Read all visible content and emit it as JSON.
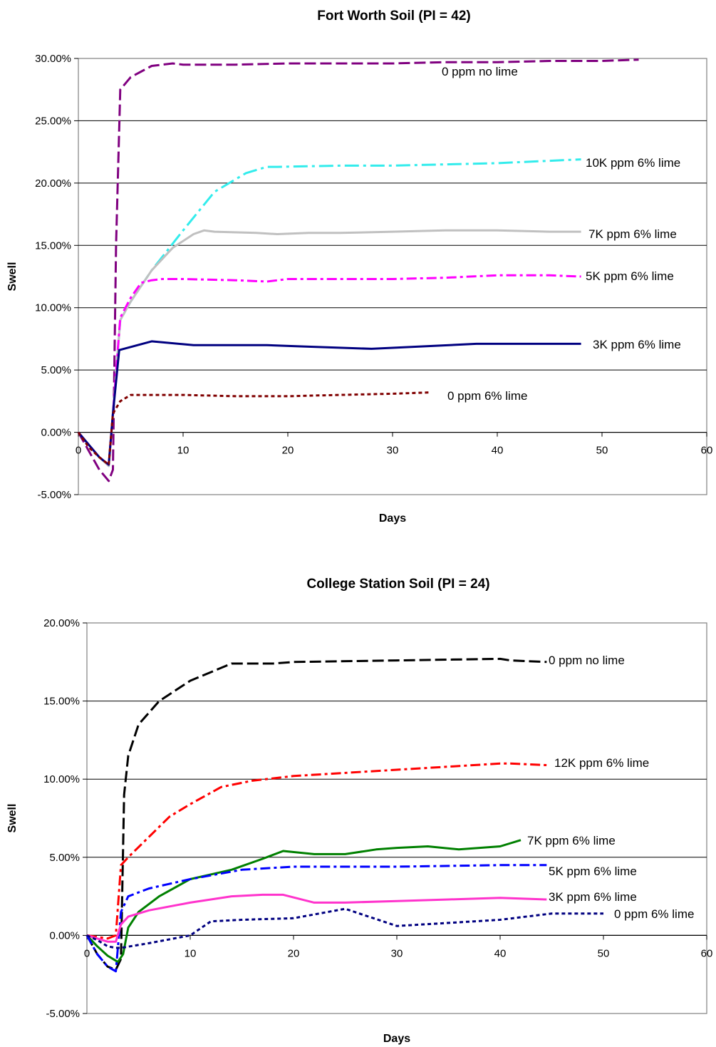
{
  "chart_data": [
    {
      "type": "line",
      "title": "Fort Worth Soil (PI = 42)",
      "xlabel": "Days",
      "ylabel": "Swell",
      "xlim": [
        0,
        60
      ],
      "ylim": [
        -5,
        30
      ],
      "xticks": [
        0,
        10,
        20,
        30,
        40,
        50,
        60
      ],
      "xtick_labels": [
        "0",
        "10",
        "20",
        "30",
        "40",
        "50",
        "60"
      ],
      "yticks": [
        -5,
        0,
        5,
        10,
        15,
        20,
        25,
        30
      ],
      "ytick_labels": [
        "-5.00%",
        "0.00%",
        "5.00%",
        "10.00%",
        "15.00%",
        "20.00%",
        "25.00%",
        "30.00%"
      ],
      "grid": "horizontal",
      "legend": "inline labels at line ends",
      "series": [
        {
          "name": "0 ppm no lime",
          "color": "#800080",
          "dash": "16,6",
          "x": [
            0,
            1,
            2,
            2.9,
            3.3,
            3.6,
            4,
            5,
            7,
            9,
            10,
            15,
            20,
            25,
            30,
            35,
            40,
            45,
            50,
            53.5
          ],
          "y": [
            0,
            -1.5,
            -3,
            -3.9,
            -3,
            15,
            27.5,
            28.5,
            29.4,
            29.6,
            29.5,
            29.5,
            29.6,
            29.6,
            29.6,
            29.7,
            29.7,
            29.8,
            29.8,
            29.9
          ]
        },
        {
          "name": "10K ppm  6% lime",
          "color": "#33ECEC",
          "dash": "20,6,4,6",
          "x": [
            0,
            1,
            2,
            2.9,
            3.3,
            4,
            5,
            7,
            10,
            13,
            16,
            18,
            19,
            25,
            30,
            40,
            48
          ],
          "y": [
            0,
            -1,
            -2,
            -2.7,
            1.5,
            9,
            10.5,
            13,
            16.2,
            19.3,
            20.8,
            21.3,
            21.3,
            21.4,
            21.4,
            21.6,
            21.9
          ]
        },
        {
          "name": "7K ppm 6% lime",
          "color": "#C0C0C0",
          "dash": "",
          "x": [
            0,
            1,
            2,
            2.9,
            3.3,
            4,
            5,
            7,
            9,
            11,
            12,
            13,
            17,
            19,
            22,
            25,
            30,
            35,
            40,
            45,
            48
          ],
          "y": [
            0,
            -1,
            -2,
            -2.7,
            1.5,
            9,
            10.5,
            13,
            14.8,
            15.9,
            16.2,
            16.1,
            16.0,
            15.9,
            16.0,
            16.0,
            16.1,
            16.2,
            16.2,
            16.1,
            16.1
          ]
        },
        {
          "name": "5K ppm 6% lime",
          "color": "#FF00FF",
          "dash": "14,5,4,5",
          "x": [
            0,
            1,
            2,
            2.9,
            3.3,
            4,
            5,
            6,
            7,
            8,
            10,
            15,
            18,
            20,
            25,
            30,
            35,
            40,
            45,
            48
          ],
          "y": [
            0,
            -1,
            -2,
            -2.6,
            1.5,
            9.2,
            10.8,
            12.0,
            12.2,
            12.3,
            12.3,
            12.2,
            12.1,
            12.3,
            12.3,
            12.3,
            12.4,
            12.6,
            12.6,
            12.5
          ]
        },
        {
          "name": "3K ppm 6% lime",
          "color": "#000080",
          "dash": "",
          "x": [
            0,
            1,
            2,
            2.9,
            3.3,
            3.9,
            7,
            11,
            18,
            21,
            28,
            38,
            48
          ],
          "y": [
            0,
            -1,
            -2,
            -2.6,
            1.5,
            6.6,
            7.3,
            7.0,
            7.0,
            6.9,
            6.7,
            7.1,
            7.1
          ]
        },
        {
          "name": "0 ppm 6% lime",
          "color": "#800000",
          "dash": "5,4",
          "x": [
            0,
            1,
            2,
            2.9,
            3.3,
            4,
            5,
            7,
            10,
            15,
            20,
            25,
            30,
            33.5
          ],
          "y": [
            0,
            -1.2,
            -2,
            -2.6,
            1.5,
            2.5,
            3.0,
            3.0,
            3.0,
            2.9,
            2.9,
            3.0,
            3.1,
            3.2
          ]
        }
      ]
    },
    {
      "type": "line",
      "title": "College Station Soil (PI = 24)",
      "xlabel": "Days",
      "ylabel": "Swell",
      "xlim": [
        0,
        60
      ],
      "ylim": [
        -5,
        20
      ],
      "xticks": [
        0,
        10,
        20,
        30,
        40,
        50,
        60
      ],
      "xtick_labels": [
        "0",
        "10",
        "20",
        "30",
        "40",
        "50",
        "60"
      ],
      "yticks": [
        -5,
        0,
        5,
        10,
        15,
        20
      ],
      "ytick_labels": [
        "-5.00%",
        "0.00%",
        "5.00%",
        "10.00%",
        "15.00%",
        "20.00%"
      ],
      "grid": "horizontal",
      "legend": "inline labels at line ends",
      "series": [
        {
          "name": "0 ppm no lime",
          "color": "#000000",
          "dash": "16,6",
          "x": [
            0,
            1,
            2,
            2.8,
            3.3,
            3.6,
            4,
            5,
            7,
            10,
            14,
            18,
            20,
            30,
            40,
            41,
            44.5
          ],
          "y": [
            0,
            -1.2,
            -2,
            -2.2,
            -1.5,
            9,
            11.5,
            13.5,
            15,
            16.3,
            17.4,
            17.4,
            17.5,
            17.6,
            17.7,
            17.6,
            17.5
          ]
        },
        {
          "name": "12K ppm 6% lime",
          "color": "#FF0000",
          "dash": "14,5,4,5",
          "x": [
            0,
            1,
            2,
            2.8,
            3.3,
            4,
            6,
            8,
            10,
            13,
            16,
            20,
            30,
            40,
            41,
            44.5
          ],
          "y": [
            0,
            -0.1,
            -0.2,
            0,
            4.5,
            5,
            6.3,
            7.6,
            8.4,
            9.5,
            9.9,
            10.2,
            10.6,
            11.0,
            11.0,
            10.9
          ]
        },
        {
          "name": "7K ppm 6% lime",
          "color": "#008000",
          "dash": "",
          "x": [
            0,
            1,
            2,
            3,
            3.5,
            4,
            5,
            7,
            10,
            14,
            17,
            19,
            22,
            25,
            28,
            30,
            33,
            36,
            38,
            40,
            42
          ],
          "y": [
            0,
            -0.7,
            -1.3,
            -1.7,
            -1.2,
            0.5,
            1.5,
            2.5,
            3.6,
            4.2,
            4.9,
            5.4,
            5.2,
            5.2,
            5.5,
            5.6,
            5.7,
            5.5,
            5.6,
            5.7,
            6.1
          ]
        },
        {
          "name": "5K ppm 6% lime",
          "color": "#0000FF",
          "dash": "14,5,4,5",
          "x": [
            0,
            1,
            2,
            2.8,
            3.3,
            4,
            6,
            10,
            15,
            20,
            25,
            30,
            40,
            44.5
          ],
          "y": [
            0,
            -1.2,
            -2,
            -2.3,
            1.5,
            2.5,
            3.0,
            3.6,
            4.2,
            4.4,
            4.4,
            4.4,
            4.5,
            4.5
          ]
        },
        {
          "name": "3K ppm 6% lime",
          "color": "#FF33CC",
          "dash": "",
          "x": [
            0,
            1,
            2,
            2.8,
            3.3,
            4,
            6,
            10,
            14,
            17,
            19,
            22,
            25,
            30,
            35,
            40,
            44.5
          ],
          "y": [
            0,
            -0.2,
            -0.4,
            -0.4,
            0.7,
            1.2,
            1.6,
            2.1,
            2.5,
            2.6,
            2.6,
            2.1,
            2.1,
            2.2,
            2.3,
            2.4,
            2.3
          ]
        },
        {
          "name": "0 ppm 6% lime",
          "color": "#000080",
          "dash": "5,4",
          "x": [
            0,
            1,
            2,
            2.8,
            3.3,
            6,
            10,
            12,
            15,
            20,
            25,
            30,
            35,
            40,
            45,
            50
          ],
          "y": [
            0,
            -0.3,
            -0.7,
            -0.8,
            -0.8,
            -0.5,
            0,
            0.9,
            1.0,
            1.1,
            1.7,
            0.6,
            0.8,
            1.0,
            1.4,
            1.4
          ]
        }
      ]
    }
  ]
}
